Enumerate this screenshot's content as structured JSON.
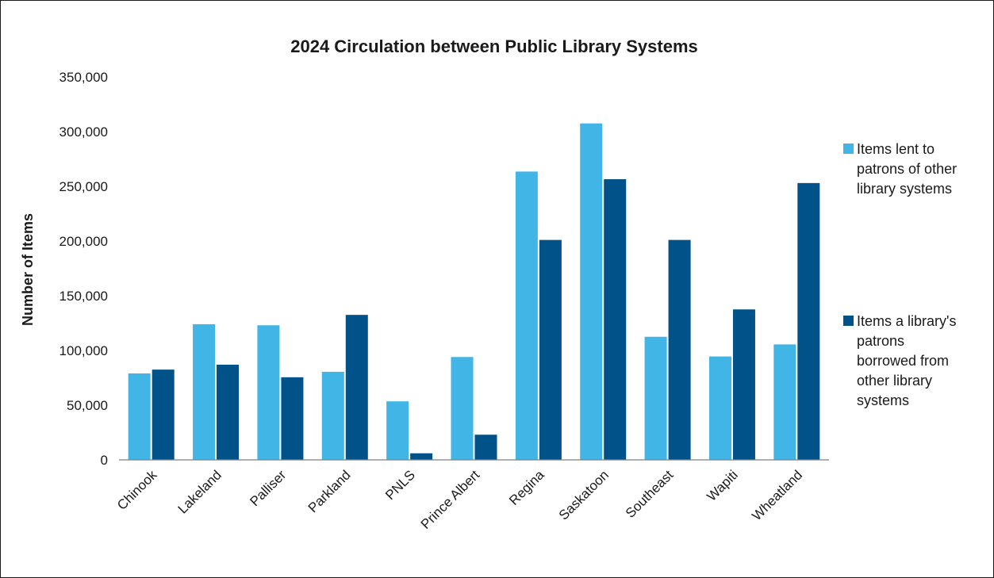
{
  "chart_data": {
    "type": "bar",
    "title": "2024 Circulation between Public Library Systems",
    "ylabel": "Number of Items",
    "xlabel": "",
    "ylim": [
      0,
      350000
    ],
    "yticks": [
      0,
      50000,
      100000,
      150000,
      200000,
      250000,
      300000,
      350000
    ],
    "ytick_labels": [
      "0",
      "50,000",
      "100,000",
      "150,000",
      "200,000",
      "250,000",
      "300,000",
      "350,000"
    ],
    "grid": false,
    "legend_position": "right",
    "categories": [
      "Chinook",
      "Lakeland",
      "Palliser",
      "Parkland",
      "PNLS",
      "Prince Albert",
      "Regina",
      "Saskatoon",
      "Southeast",
      "Wapiti",
      "Wheatland"
    ],
    "series": [
      {
        "name": "Items lent to patrons of other library systems",
        "legend_lines": [
          "Items lent to",
          "patrons of other",
          "library systems"
        ],
        "color": "#41b6e6",
        "values": [
          79000,
          124000,
          123000,
          80500,
          53500,
          94000,
          263500,
          307500,
          112500,
          94500,
          105500
        ]
      },
      {
        "name": "Items a library's patrons borrowed from other library systems",
        "legend_lines": [
          "Items a library's",
          "patrons",
          "borrowed from",
          "other library",
          "systems"
        ],
        "color": "#005288",
        "values": [
          82500,
          87000,
          75500,
          132500,
          6000,
          23000,
          201000,
          256500,
          201000,
          137500,
          253000
        ]
      }
    ]
  }
}
